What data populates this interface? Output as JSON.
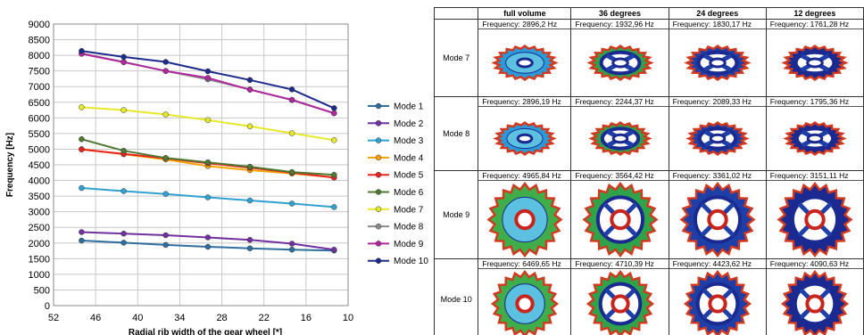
{
  "chart_data": {
    "type": "line",
    "xlabel": "Radial rib width of the gear wheel [*]",
    "ylabel": "Frequency [Hz]",
    "xlim": [
      52,
      10
    ],
    "ylim": [
      0,
      9000
    ],
    "x_ticks": [
      "52",
      "46",
      "40",
      "34",
      "28",
      "22",
      "16",
      "10"
    ],
    "y_ticks": [
      "0",
      "500",
      "1000",
      "1500",
      "2000",
      "2500",
      "3000",
      "3500",
      "4000",
      "4500",
      "5000",
      "5500",
      "6000",
      "6500",
      "7000",
      "7500",
      "8000",
      "8500",
      "9000"
    ],
    "grid": true,
    "legend_position": "right",
    "x": [
      48,
      42,
      36,
      30,
      24,
      18,
      12
    ],
    "series": [
      {
        "name": "Mode 1",
        "color": "#2e6e9e",
        "values": [
          2080,
          2010,
          1940,
          1880,
          1830,
          1790,
          1760
        ]
      },
      {
        "name": "Mode 2",
        "color": "#7030a0",
        "values": [
          2350,
          2300,
          2250,
          2180,
          2100,
          1980,
          1790
        ]
      },
      {
        "name": "Mode 3",
        "color": "#31a2cf",
        "values": [
          3760,
          3660,
          3570,
          3460,
          3360,
          3260,
          3150
        ]
      },
      {
        "name": "Mode 4",
        "color": "#f4a300",
        "values": [
          5000,
          4840,
          4670,
          4460,
          4330,
          4220,
          4100
        ]
      },
      {
        "name": "Mode 5",
        "color": "#e8231e",
        "values": [
          4990,
          4850,
          4710,
          4550,
          4410,
          4250,
          4090
        ]
      },
      {
        "name": "Mode 6",
        "color": "#4e7a32",
        "values": [
          5320,
          4950,
          4720,
          4580,
          4440,
          4270,
          4180
        ]
      },
      {
        "name": "Mode 7",
        "color": "#e8e82a",
        "values": [
          6340,
          6250,
          6110,
          5930,
          5730,
          5510,
          5290
        ]
      },
      {
        "name": "Mode 8",
        "color": "#8a8a8a",
        "values": [
          8060,
          7790,
          7500,
          7230,
          6910,
          6570,
          6150
        ]
      },
      {
        "name": "Mode 9",
        "color": "#b0279e",
        "values": [
          8050,
          7780,
          7500,
          7280,
          6900,
          6580,
          6150
        ]
      },
      {
        "name": "Mode 10",
        "color": "#1c2a8c",
        "values": [
          8140,
          7950,
          7790,
          7490,
          7210,
          6910,
          6310
        ]
      }
    ]
  },
  "table": {
    "headers": [
      "full volume",
      "36 degrees",
      "24 degrees",
      "12 degrees"
    ],
    "rows": [
      {
        "mode": "Mode 7",
        "freqs": [
          "Frequency: 2896,2 Hz",
          "Frequency: 1932,96 Hz",
          "Frequency: 1830,17 Hz",
          "Frequency: 1761,28 Hz"
        ],
        "view": "side"
      },
      {
        "mode": "Mode 8",
        "freqs": [
          "Frequency: 2896,19 Hz",
          "Frequency: 2244,37 Hz",
          "Frequency: 2089,33 Hz",
          "Frequency: 1795,36 Hz"
        ],
        "view": "side"
      },
      {
        "mode": "Mode 9",
        "freqs": [
          "Frequency: 4965,84 Hz",
          "Frequency: 3564,42 Hz",
          "Frequency: 3361,02 Hz",
          "Frequency: 3151,11 Hz"
        ],
        "view": "front"
      },
      {
        "mode": "Mode 10",
        "freqs": [
          "Frequency: 6469,65 Hz",
          "Frequency: 4710,39 Hz",
          "Frequency: 4423,62 Hz",
          "Frequency: 4090,63 Hz"
        ],
        "view": "front"
      }
    ]
  }
}
